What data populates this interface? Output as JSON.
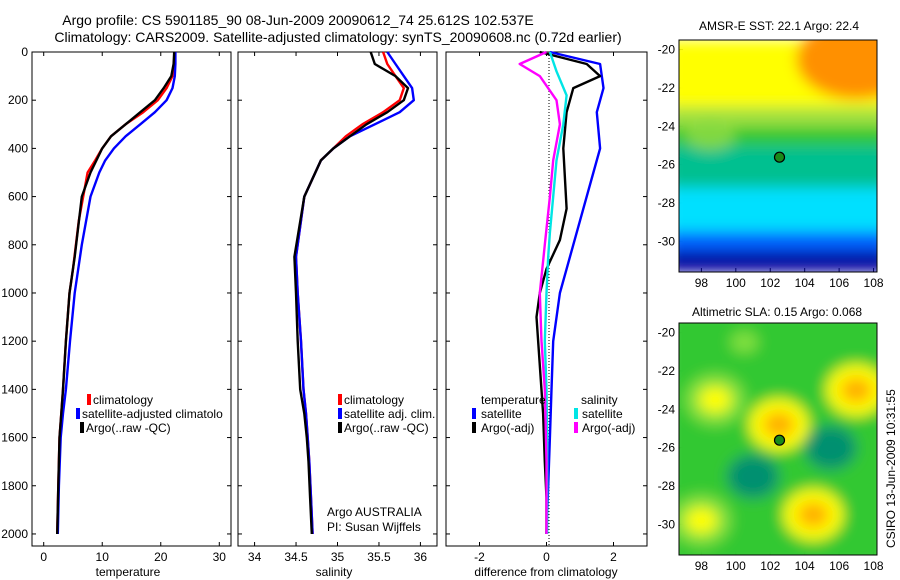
{
  "title_line1": "Argo profile: CS 5901185_90 08-Jun-2009 20090612_74 25.612S 102.537E",
  "title_line2": "Climatology: CARS2009. Satellite-adjusted climatology: synTS_20090608.nc (0.72d earlier)",
  "side_credit": "CSIRO 13-Jun-2009 10:31:55",
  "colors": {
    "climatology": "#ff0000",
    "satellite": "#0000ff",
    "argo": "#000000",
    "sal_satellite": "#00e5e5",
    "sal_argo": "#ff00ff",
    "marker": "#1a8a1a"
  },
  "chart_data": [
    {
      "type": "line",
      "panel": "temperature",
      "xlabel": "temperature",
      "xlim": [
        -2,
        32
      ],
      "ylim": [
        0,
        2050
      ],
      "y_reversed": true,
      "xticks": [
        "0",
        "10",
        "20",
        "30"
      ],
      "yticks": [
        "0",
        "200",
        "400",
        "600",
        "800",
        "1000",
        "1200",
        "1400",
        "1600",
        "1800",
        "2000"
      ],
      "legend": [
        "climatology",
        "satellite-adjusted climatolo",
        "Argo(..raw -QC)"
      ],
      "series": [
        {
          "name": "climatology",
          "x": [
            22.4,
            22.3,
            22.0,
            21.0,
            19.5,
            17.0,
            14.0,
            11.5,
            10.0,
            8.8,
            7.5,
            6.0,
            5.0,
            4.4,
            3.8,
            3.3,
            3.0,
            2.7,
            2.5,
            2.3
          ],
          "y": [
            0,
            50,
            100,
            150,
            200,
            250,
            300,
            350,
            400,
            450,
            500,
            700,
            900,
            1000,
            1200,
            1400,
            1500,
            1600,
            1800,
            2000
          ]
        },
        {
          "name": "satellite-adjusted climatology",
          "x": [
            22.5,
            22.5,
            22.4,
            22.0,
            21.0,
            19.0,
            16.5,
            14.0,
            12.0,
            10.5,
            9.5,
            8.0,
            6.5,
            5.3,
            4.5,
            3.8,
            3.3,
            2.9,
            2.6,
            2.4
          ],
          "y": [
            0,
            50,
            100,
            150,
            200,
            250,
            300,
            350,
            400,
            450,
            500,
            600,
            800,
            1000,
            1200,
            1400,
            1500,
            1600,
            1800,
            2000
          ]
        },
        {
          "name": "Argo(..raw -QC)",
          "x": [
            22.3,
            22.2,
            21.8,
            20.5,
            19.0,
            16.5,
            14.0,
            11.5,
            10.0,
            9.0,
            8.0,
            6.5,
            5.3,
            4.4,
            3.8,
            3.3,
            3.0,
            2.7,
            2.5,
            2.3
          ],
          "y": [
            0,
            50,
            100,
            150,
            200,
            250,
            300,
            350,
            400,
            450,
            500,
            600,
            850,
            1000,
            1200,
            1400,
            1500,
            1600,
            1800,
            2000
          ]
        }
      ]
    },
    {
      "type": "line",
      "panel": "salinity",
      "xlabel": "salinity",
      "xlim": [
        33.8,
        36.2
      ],
      "ylim": [
        0,
        2050
      ],
      "y_reversed": true,
      "xticks": [
        "34",
        "34.5",
        "35",
        "35.5",
        "36"
      ],
      "legend": [
        "climatology",
        "satellite adj. clim.",
        "Argo(..raw -QC)"
      ],
      "annotation": [
        "Argo AUSTRALIA",
        "PI: Susan Wijffels"
      ],
      "series": [
        {
          "name": "climatology",
          "x": [
            35.55,
            35.6,
            35.7,
            35.8,
            35.75,
            35.55,
            35.3,
            35.1,
            34.95,
            34.8,
            34.6,
            34.5,
            34.52,
            34.56,
            34.59,
            34.62,
            34.64,
            34.66,
            34.68,
            34.7
          ],
          "y": [
            0,
            50,
            100,
            150,
            200,
            250,
            300,
            350,
            400,
            450,
            600,
            850,
            1000,
            1200,
            1400,
            1500,
            1600,
            1700,
            1850,
            2000
          ]
        },
        {
          "name": "satellite adj. clim.",
          "x": [
            35.6,
            35.7,
            35.8,
            35.9,
            35.92,
            35.75,
            35.45,
            35.15,
            34.95,
            34.8,
            34.6,
            34.5,
            34.52,
            34.56,
            34.59,
            34.62,
            34.64,
            34.66,
            34.68,
            34.7
          ],
          "y": [
            0,
            50,
            100,
            150,
            200,
            250,
            300,
            350,
            400,
            450,
            600,
            850,
            1000,
            1200,
            1400,
            1500,
            1600,
            1700,
            1850,
            2000
          ]
        },
        {
          "name": "Argo(..raw -QC)",
          "x": [
            35.4,
            35.45,
            35.7,
            35.85,
            35.8,
            35.6,
            35.35,
            35.15,
            34.95,
            34.8,
            34.6,
            34.48,
            34.5,
            34.52,
            34.55,
            34.6,
            34.63,
            34.65,
            34.67,
            34.69
          ],
          "y": [
            0,
            50,
            100,
            150,
            200,
            250,
            300,
            350,
            400,
            450,
            600,
            850,
            1000,
            1200,
            1400,
            1500,
            1600,
            1700,
            1850,
            2000
          ]
        }
      ]
    },
    {
      "type": "line",
      "panel": "difference",
      "xlabel": "difference from climatology",
      "xlim": [
        -3,
        3
      ],
      "ylim": [
        0,
        2050
      ],
      "y_reversed": true,
      "xticks": [
        "-2",
        "0",
        "2"
      ],
      "legend_temperature_title": "temperature",
      "legend_salinity_title": "salinity",
      "legend": [
        "satellite",
        "Argo(-adj)",
        "satellite",
        "Argo(-adj)"
      ],
      "series": [
        {
          "name": "temperature satellite",
          "x": [
            0.1,
            1.6,
            1.7,
            1.5,
            1.6,
            1.4,
            1.2,
            1.0,
            0.8,
            0.6,
            0.4,
            0.2,
            0.15,
            0.1,
            0.05,
            0.0
          ],
          "y": [
            0,
            50,
            150,
            250,
            400,
            500,
            600,
            700,
            800,
            900,
            1000,
            1200,
            1400,
            1600,
            1800,
            2000
          ]
        },
        {
          "name": "temperature Argo(-adj)",
          "x": [
            -0.2,
            1.2,
            1.6,
            0.8,
            0.6,
            0.5,
            0.6,
            0.4,
            0.0,
            -0.2,
            -0.3,
            -0.2,
            -0.1,
            -0.05,
            0.0,
            0.0
          ],
          "y": [
            0,
            50,
            100,
            150,
            250,
            400,
            650,
            780,
            900,
            1000,
            1100,
            1300,
            1500,
            1700,
            1850,
            2000
          ]
        },
        {
          "name": "salinity satellite",
          "x": [
            0.1,
            0.3,
            0.6,
            0.5,
            0.3,
            0.2,
            0.1,
            0.05,
            0.0,
            -0.05,
            0.0,
            0.02,
            0.02,
            0.02
          ],
          "y": [
            0,
            80,
            180,
            300,
            450,
            600,
            750,
            850,
            1000,
            1200,
            1400,
            1600,
            1800,
            2000
          ]
        },
        {
          "name": "salinity Argo(-adj)",
          "x": [
            0.0,
            -0.8,
            -0.2,
            0.3,
            0.4,
            0.2,
            0.1,
            -0.05,
            -0.2,
            -0.15,
            -0.05,
            0.0,
            0.0
          ],
          "y": [
            0,
            50,
            100,
            200,
            300,
            450,
            600,
            800,
            1000,
            1200,
            1400,
            1700,
            2000
          ]
        }
      ]
    },
    {
      "type": "heatmap",
      "panel": "sst_map",
      "title": "AMSR-E SST: 22.1  Argo: 22.4",
      "xticks": [
        "98",
        "100",
        "102",
        "104",
        "106",
        "108"
      ],
      "yticks": [
        "-20",
        "-22",
        "-24",
        "-26",
        "-28",
        "-30"
      ],
      "xlim": [
        96.7,
        108.2
      ],
      "ylim": [
        -31.6,
        -19.5
      ],
      "marker": {
        "lon": 102.537,
        "lat": -25.612
      },
      "palette_cold_to_warm": [
        "#0000a0",
        "#0060ff",
        "#00e0ff",
        "#00c090",
        "#30c830",
        "#a0e040",
        "#ffff00",
        "#ffa000"
      ],
      "zones": [
        {
          "lat_top": -19.5,
          "lat_bottom": -23.0,
          "level": 6
        },
        {
          "lat_top": -23.0,
          "lat_bottom": -24.0,
          "level": 5
        },
        {
          "lat_top": -24.0,
          "lat_bottom": -25.0,
          "level": 4
        },
        {
          "lat_top": -25.0,
          "lat_bottom": -27.2,
          "level": 3
        },
        {
          "lat_top": -27.2,
          "lat_bottom": -29.5,
          "level": 2
        },
        {
          "lat_top": -29.5,
          "lat_bottom": -30.5,
          "level": 1
        },
        {
          "lat_top": -30.5,
          "lat_bottom": -31.6,
          "level": 0
        }
      ]
    },
    {
      "type": "heatmap",
      "panel": "sla_map",
      "title": "Altimetric SLA: 0.15  Argo: 0.068",
      "xticks": [
        "98",
        "100",
        "102",
        "104",
        "106",
        "108"
      ],
      "yticks": [
        "-20",
        "-22",
        "-24",
        "-26",
        "-28",
        "-30"
      ],
      "xlim": [
        96.7,
        108.2
      ],
      "ylim": [
        -31.6,
        -19.5
      ],
      "marker": {
        "lon": 102.537,
        "lat": -25.612
      },
      "palette": [
        "#009070",
        "#30c830",
        "#80e040",
        "#ffff00",
        "#ffb000",
        "#ff7000"
      ],
      "blobs": [
        {
          "lon": 102.5,
          "lat": -24.8,
          "level": 4
        },
        {
          "lon": 98.8,
          "lat": -23.5,
          "level": 3
        },
        {
          "lon": 107.0,
          "lat": -23.0,
          "level": 4
        },
        {
          "lon": 104.5,
          "lat": -29.5,
          "level": 4
        },
        {
          "lon": 98.0,
          "lat": -29.8,
          "level": 3
        },
        {
          "lon": 100.5,
          "lat": -20.5,
          "level": 2
        },
        {
          "lon": 105.5,
          "lat": -26.0,
          "level": 0
        },
        {
          "lon": 101.0,
          "lat": -27.5,
          "level": 0
        }
      ]
    }
  ]
}
